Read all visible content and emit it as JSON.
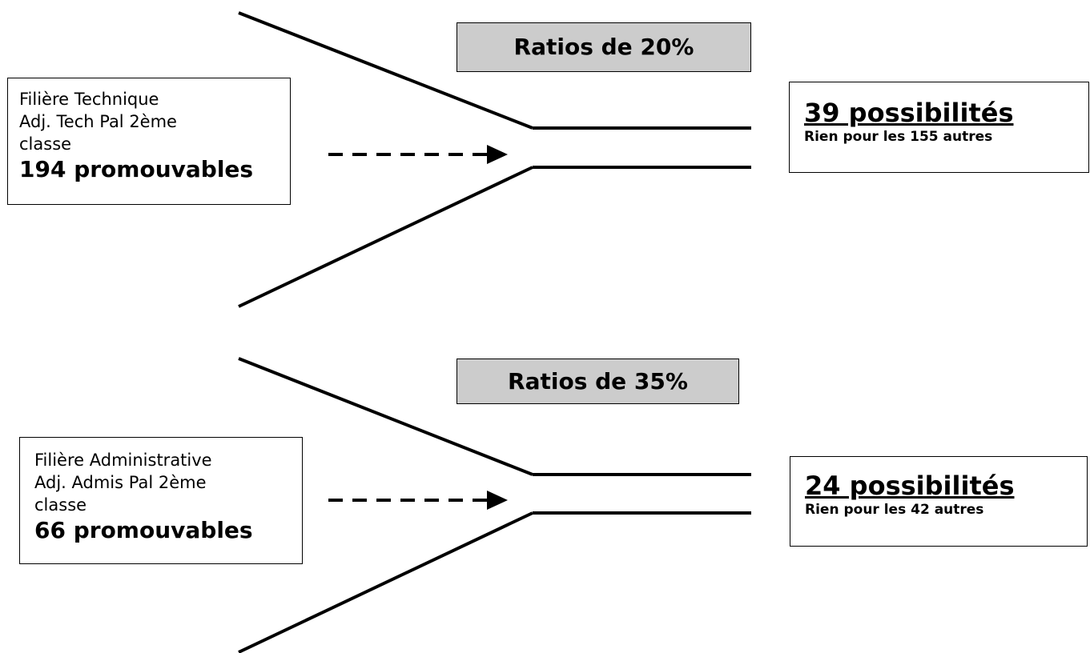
{
  "diagrams": [
    {
      "ratio_label": "Ratios de 20%",
      "source": {
        "line1": "Filière Technique",
        "line2": "Adj. Tech Pal 2ème",
        "line3": "classe",
        "count": "194 promouvables"
      },
      "result": {
        "headline": "39 possibilités",
        "note": "Rien pour les 155 autres"
      }
    },
    {
      "ratio_label": "Ratios de 35%",
      "source": {
        "line1": "Filière Administrative",
        "line2": "Adj. Admis Pal 2ème",
        "line3": "classe",
        "count": "66 promouvables"
      },
      "result": {
        "headline": "24 possibilités",
        "note": "Rien pour les 42 autres"
      }
    }
  ]
}
